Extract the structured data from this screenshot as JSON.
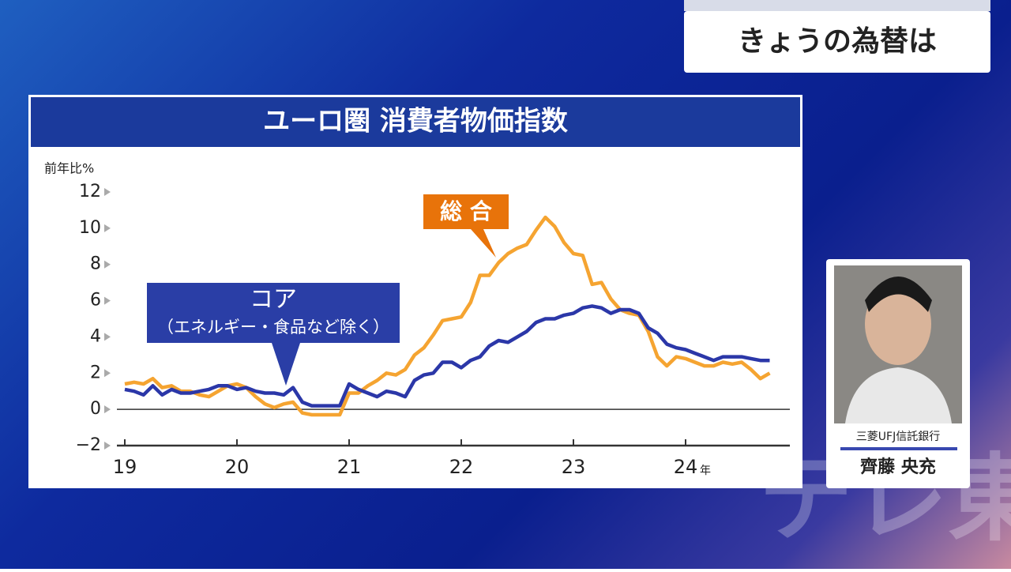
{
  "banner": {
    "text": "きょうの為替は"
  },
  "guest": {
    "company": "三菱UFJ信託銀行",
    "name": "齊藤 央充"
  },
  "watermark": "テレ東",
  "chart_data": {
    "type": "line",
    "title": "ユーロ圏 消費者物価指数",
    "y_label": "前年比%",
    "x_unit": "年",
    "categories": [
      "19",
      null,
      null,
      null,
      null,
      null,
      null,
      null,
      null,
      null,
      null,
      null,
      "20",
      null,
      null,
      null,
      null,
      null,
      null,
      null,
      null,
      null,
      null,
      null,
      "21",
      null,
      null,
      null,
      null,
      null,
      null,
      null,
      null,
      null,
      null,
      null,
      "22",
      null,
      null,
      null,
      null,
      null,
      null,
      null,
      null,
      null,
      null,
      null,
      "23",
      null,
      null,
      null,
      null,
      null,
      null,
      null,
      null,
      null,
      null,
      null,
      "24",
      null,
      null,
      null,
      null,
      null,
      null,
      null,
      null,
      null
    ],
    "series": [
      {
        "name": "総 合",
        "color": "#f5a431",
        "values": [
          1.4,
          1.5,
          1.4,
          1.7,
          1.2,
          1.3,
          1.0,
          1.0,
          0.8,
          0.7,
          1.0,
          1.3,
          1.4,
          1.2,
          0.7,
          0.3,
          0.1,
          0.3,
          0.4,
          -0.2,
          -0.3,
          -0.3,
          -0.3,
          -0.3,
          0.9,
          0.9,
          1.3,
          1.6,
          2.0,
          1.9,
          2.2,
          3.0,
          3.4,
          4.1,
          4.9,
          5.0,
          5.1,
          5.9,
          7.4,
          7.4,
          8.1,
          8.6,
          8.9,
          9.1,
          9.9,
          10.6,
          10.1,
          9.2,
          8.6,
          8.5,
          6.9,
          7.0,
          6.1,
          5.5,
          5.3,
          5.2,
          4.3,
          2.9,
          2.4,
          2.9,
          2.8,
          2.6,
          2.4,
          2.4,
          2.6,
          2.5,
          2.6,
          2.2,
          1.7,
          2.0
        ]
      },
      {
        "name": "コア",
        "note": "（エネルギー・食品など除く）",
        "color": "#2b37a8",
        "values": [
          1.1,
          1.0,
          0.8,
          1.3,
          0.8,
          1.1,
          0.9,
          0.9,
          1.0,
          1.1,
          1.3,
          1.3,
          1.1,
          1.2,
          1.0,
          0.9,
          0.9,
          0.8,
          1.2,
          0.4,
          0.2,
          0.2,
          0.2,
          0.2,
          1.4,
          1.1,
          0.9,
          0.7,
          1.0,
          0.9,
          0.7,
          1.6,
          1.9,
          2.0,
          2.6,
          2.6,
          2.3,
          2.7,
          2.9,
          3.5,
          3.8,
          3.7,
          4.0,
          4.3,
          4.8,
          5.0,
          5.0,
          5.2,
          5.3,
          5.6,
          5.7,
          5.6,
          5.3,
          5.5,
          5.5,
          5.3,
          4.5,
          4.2,
          3.6,
          3.4,
          3.3,
          3.1,
          2.9,
          2.7,
          2.9,
          2.9,
          2.9,
          2.8,
          2.7,
          2.7
        ]
      }
    ],
    "ylim": [
      -2,
      12
    ],
    "yticks": [
      {
        "value": -2,
        "label": "−2"
      },
      0,
      2,
      4,
      6,
      8,
      10,
      12
    ],
    "grid": false
  }
}
